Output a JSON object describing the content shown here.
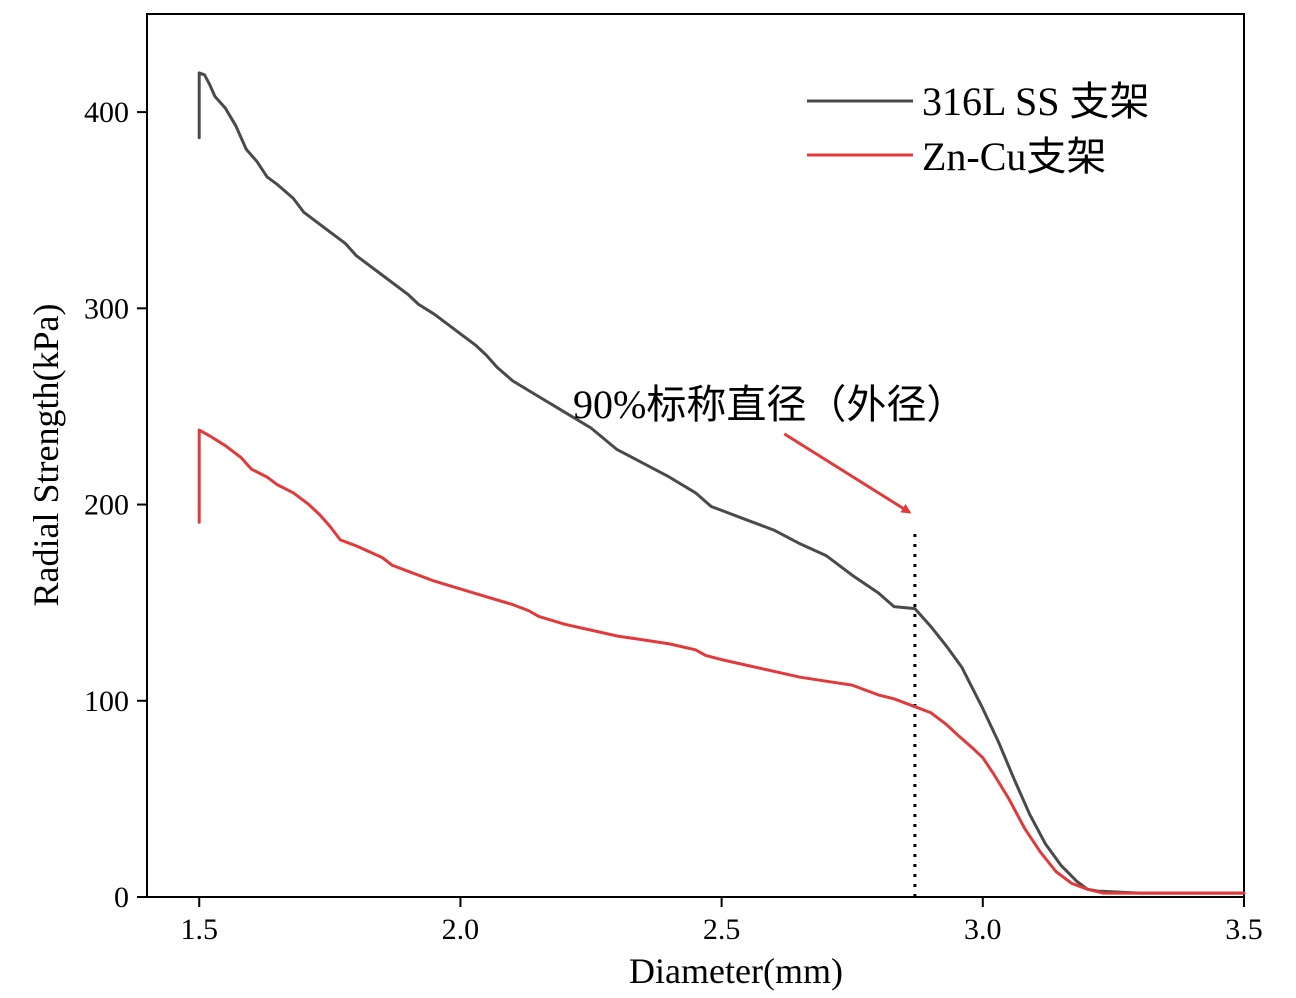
{
  "chart_data": {
    "type": "line",
    "xlabel": "Diameter(mm)",
    "ylabel": "Radial Strength(kPa)",
    "xlim": [
      1.4,
      3.5
    ],
    "ylim": [
      0,
      450
    ],
    "xticks": [
      "1.5",
      "2.0",
      "2.5",
      "3.0",
      "3.5"
    ],
    "yticks": [
      "0",
      "100",
      "200",
      "300",
      "400"
    ],
    "xtick_values": [
      1.5,
      2.0,
      2.5,
      3.0,
      3.5
    ],
    "ytick_values": [
      0,
      100,
      200,
      300,
      400
    ],
    "grid": false,
    "legend_position": "top-right",
    "series": [
      {
        "name": "316L SS 支架",
        "color": "#4a4a4a",
        "points": [
          [
            1.5,
            387
          ],
          [
            1.5,
            420
          ],
          [
            1.51,
            419
          ],
          [
            1.52,
            414
          ],
          [
            1.53,
            408
          ],
          [
            1.55,
            402
          ],
          [
            1.57,
            393
          ],
          [
            1.59,
            381
          ],
          [
            1.61,
            375
          ],
          [
            1.63,
            367
          ],
          [
            1.65,
            363
          ],
          [
            1.68,
            356
          ],
          [
            1.7,
            349
          ],
          [
            1.75,
            339
          ],
          [
            1.78,
            333
          ],
          [
            1.8,
            327
          ],
          [
            1.85,
            317
          ],
          [
            1.9,
            307
          ],
          [
            1.92,
            302
          ],
          [
            1.95,
            297
          ],
          [
            2.0,
            287
          ],
          [
            2.03,
            281
          ],
          [
            2.05,
            276
          ],
          [
            2.07,
            270
          ],
          [
            2.1,
            263
          ],
          [
            2.15,
            255
          ],
          [
            2.2,
            247
          ],
          [
            2.25,
            239
          ],
          [
            2.3,
            228
          ],
          [
            2.35,
            221
          ],
          [
            2.4,
            214
          ],
          [
            2.45,
            206
          ],
          [
            2.48,
            199
          ],
          [
            2.5,
            197
          ],
          [
            2.55,
            192
          ],
          [
            2.6,
            187
          ],
          [
            2.65,
            180
          ],
          [
            2.7,
            174
          ],
          [
            2.75,
            164
          ],
          [
            2.8,
            155
          ],
          [
            2.83,
            148
          ],
          [
            2.87,
            147
          ],
          [
            2.9,
            138
          ],
          [
            2.93,
            128
          ],
          [
            2.96,
            117
          ],
          [
            3.0,
            96
          ],
          [
            3.03,
            79
          ],
          [
            3.06,
            60
          ],
          [
            3.09,
            42
          ],
          [
            3.12,
            27
          ],
          [
            3.15,
            16
          ],
          [
            3.18,
            8
          ],
          [
            3.2,
            4
          ],
          [
            3.22,
            3
          ],
          [
            3.3,
            2
          ],
          [
            3.4,
            2
          ],
          [
            3.5,
            2
          ]
        ]
      },
      {
        "name": "Zn-Cu支架",
        "color": "#e23a3a",
        "points": [
          [
            1.5,
            191
          ],
          [
            1.5,
            238
          ],
          [
            1.52,
            235
          ],
          [
            1.55,
            230
          ],
          [
            1.58,
            224
          ],
          [
            1.6,
            218
          ],
          [
            1.63,
            214
          ],
          [
            1.65,
            210
          ],
          [
            1.68,
            206
          ],
          [
            1.71,
            200
          ],
          [
            1.73,
            195
          ],
          [
            1.75,
            189
          ],
          [
            1.77,
            182
          ],
          [
            1.8,
            179
          ],
          [
            1.85,
            173
          ],
          [
            1.87,
            169
          ],
          [
            1.9,
            166
          ],
          [
            1.95,
            161
          ],
          [
            2.0,
            157
          ],
          [
            2.05,
            153
          ],
          [
            2.1,
            149
          ],
          [
            2.13,
            146
          ],
          [
            2.15,
            143
          ],
          [
            2.2,
            139
          ],
          [
            2.25,
            136
          ],
          [
            2.3,
            133
          ],
          [
            2.35,
            131
          ],
          [
            2.4,
            129
          ],
          [
            2.45,
            126
          ],
          [
            2.47,
            123
          ],
          [
            2.5,
            121
          ],
          [
            2.55,
            118
          ],
          [
            2.6,
            115
          ],
          [
            2.65,
            112
          ],
          [
            2.7,
            110
          ],
          [
            2.75,
            108
          ],
          [
            2.78,
            105
          ],
          [
            2.8,
            103
          ],
          [
            2.83,
            101
          ],
          [
            2.87,
            97
          ],
          [
            2.9,
            94
          ],
          [
            2.93,
            88
          ],
          [
            2.95,
            83
          ],
          [
            2.98,
            76
          ],
          [
            3.0,
            71
          ],
          [
            3.02,
            63
          ],
          [
            3.05,
            50
          ],
          [
            3.08,
            35
          ],
          [
            3.11,
            23
          ],
          [
            3.14,
            13
          ],
          [
            3.17,
            7
          ],
          [
            3.2,
            4
          ],
          [
            3.23,
            2
          ],
          [
            3.3,
            2
          ],
          [
            3.4,
            2
          ],
          [
            3.5,
            2
          ]
        ]
      }
    ],
    "reference_line": {
      "x": 2.87,
      "y_range": [
        0,
        186
      ],
      "style": "dotted"
    },
    "annotation": {
      "text": "90%标称直径（外径）",
      "color": "#e23a3a",
      "arrow_from": [
        2.62,
        236
      ],
      "arrow_to": [
        2.86,
        196
      ]
    }
  }
}
